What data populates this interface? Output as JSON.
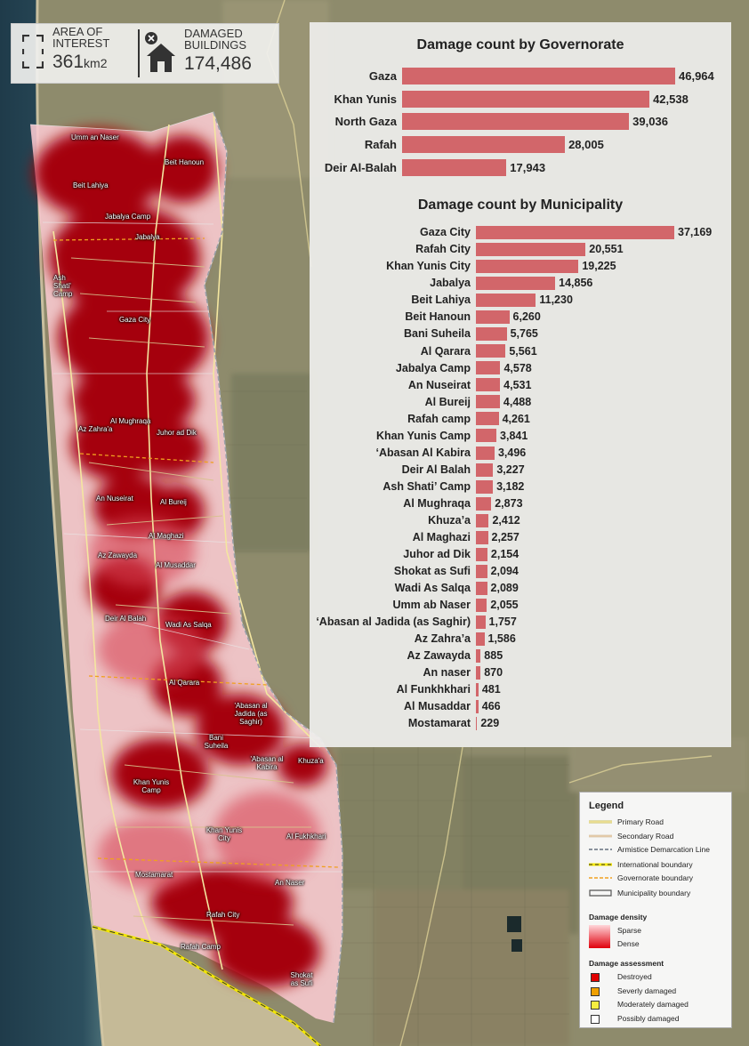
{
  "summary": {
    "area_label": "AREA OF INTEREST",
    "area_value": "361",
    "area_unit": "km2",
    "damaged_label": "DAMAGED BUILDINGS",
    "damaged_value": "174,486"
  },
  "charts": [
    {
      "type": "bar",
      "title": "Damage count by Governorate",
      "categories": [
        "Gaza",
        "Khan Yunis",
        "North Gaza",
        "Rafah",
        "Deir Al-Balah"
      ],
      "values": [
        46964,
        42538,
        39036,
        28005,
        17943
      ],
      "value_labels": [
        "46,964",
        "42,538",
        "39,036",
        "28,005",
        "17,943"
      ],
      "bar_color": "#d2666a"
    },
    {
      "type": "bar",
      "title": "Damage count by Municipality",
      "categories": [
        "Gaza City",
        "Rafah City",
        "Khan Yunis City",
        "Jabalya",
        "Beit Lahiya",
        "Beit Hanoun",
        "Bani Suheila",
        "Al Qarara",
        "Jabalya Camp",
        "An Nuseirat",
        "Al Bureij",
        "Rafah camp",
        "Khan Yunis Camp",
        "‘Abasan Al Kabira",
        "Deir Al Balah",
        "Ash Shati’ Camp",
        "Al Mughraqa",
        "Khuza’a",
        "Al Maghazi",
        "Juhor ad Dik",
        "Shokat as Sufi",
        "Wadi As Salqa",
        "Umm ab Naser",
        "‘Abasan al Jadida (as Saghir)",
        "Az Zahra’a",
        "Az Zawayda",
        "An naser",
        "Al Funkhkhari",
        "Al Musaddar",
        "Mostamarat"
      ],
      "values": [
        37169,
        20551,
        19225,
        14856,
        11230,
        6260,
        5765,
        5561,
        4578,
        4531,
        4488,
        4261,
        3841,
        3496,
        3227,
        3182,
        2873,
        2412,
        2257,
        2154,
        2094,
        2089,
        2055,
        1757,
        1586,
        885,
        870,
        481,
        466,
        229
      ],
      "value_labels": [
        "37,169",
        "20,551",
        "19,225",
        "14,856",
        "11,230",
        "6,260",
        "5,765",
        "5,561",
        "4,578",
        "4,531",
        "4,488",
        "4,261",
        "3,841",
        "3,496",
        "3,227",
        "3,182",
        "2,873",
        "2,412",
        "2,257",
        "2,154",
        "2,094",
        "2,089",
        "2,055",
        "1,757",
        "1,586",
        "885",
        "870",
        "481",
        "466",
        "229"
      ],
      "bar_color": "#d2666a"
    }
  ],
  "legend": {
    "title": "Legend",
    "lines": [
      "Primary Road",
      "Secondary Road",
      "Armistice Demarcation Line",
      "International boundary",
      "Governorate boundary",
      "Municipality boundary"
    ],
    "density_title": "Damage density",
    "density_sparse": "Sparse",
    "density_dense": "Dense",
    "assessment_title": "Damage assessment",
    "assessment_items": [
      {
        "label": "Destroyed",
        "color": "#e00000"
      },
      {
        "label": "Severly damaged",
        "color": "#f0a000"
      },
      {
        "label": "Moderately damaged",
        "color": "#f6ee40"
      },
      {
        "label": "Possibly damaged",
        "color": "#ffffff"
      }
    ]
  },
  "map_labels": [
    "Umm an Naser",
    "Beit Hanoun",
    "Beit Lahiya",
    "Jabalya Camp",
    "Jabalya",
    "Ash Shati' Camp",
    "Gaza City",
    "Al Mughraqa",
    "Az Zahra'a",
    "Juhor ad Dik",
    "An Nuseirat",
    "Al Bureij",
    "Al Maghazi",
    "Az Zawayda",
    "Al Musaddar",
    "Deir Al Balah",
    "Wadi As Salqa",
    "Al Qarara",
    "'Abasan al Jadida (as Saghir)",
    "Bani Suheila",
    "'Abasan al Kabira",
    "Khuza'a",
    "Khan Yunis Camp",
    "Khan Yunis City",
    "Al Fukhkhari",
    "Mostamarat",
    "An Naser",
    "Rafah City",
    "Rafah Camp",
    "Shokat as Sufi"
  ]
}
